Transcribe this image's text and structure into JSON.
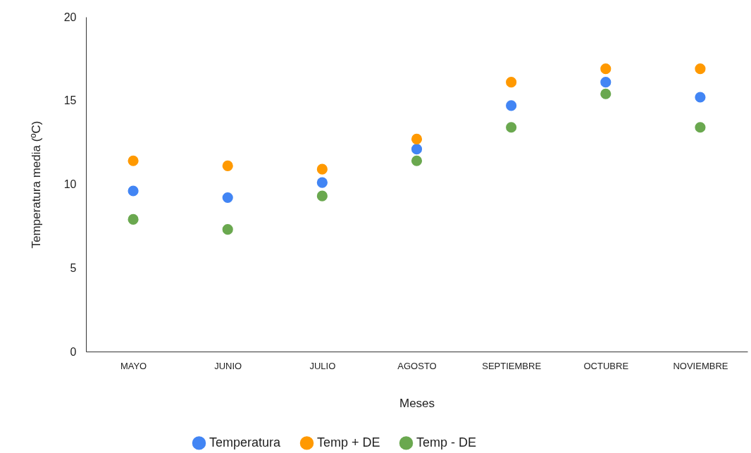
{
  "chart_data": {
    "type": "scatter",
    "xlabel": "Meses",
    "ylabel": "Temperatura media (ºC)",
    "categories": [
      "MAYO",
      "JUNIO",
      "JULIO",
      "AGOSTO",
      "SEPTIEMBRE",
      "OCTUBRE",
      "NOVIEMBRE"
    ],
    "series": [
      {
        "name": "Temperatura",
        "color": "#4285f4",
        "values": [
          9.6,
          9.2,
          10.1,
          12.1,
          14.7,
          16.1,
          15.2
        ]
      },
      {
        "name": "Temp + DE",
        "color": "#ff9900",
        "values": [
          11.4,
          11.1,
          10.9,
          12.7,
          16.1,
          16.9,
          16.9
        ]
      },
      {
        "name": "Temp - DE",
        "color": "#6aa84f",
        "values": [
          7.9,
          7.3,
          9.3,
          11.4,
          13.4,
          15.4,
          13.4
        ]
      }
    ],
    "ylim": [
      0,
      20
    ],
    "yticks": [
      0,
      5,
      10,
      15,
      20
    ],
    "grid": false,
    "legend": "bottom",
    "marker": "circle"
  }
}
